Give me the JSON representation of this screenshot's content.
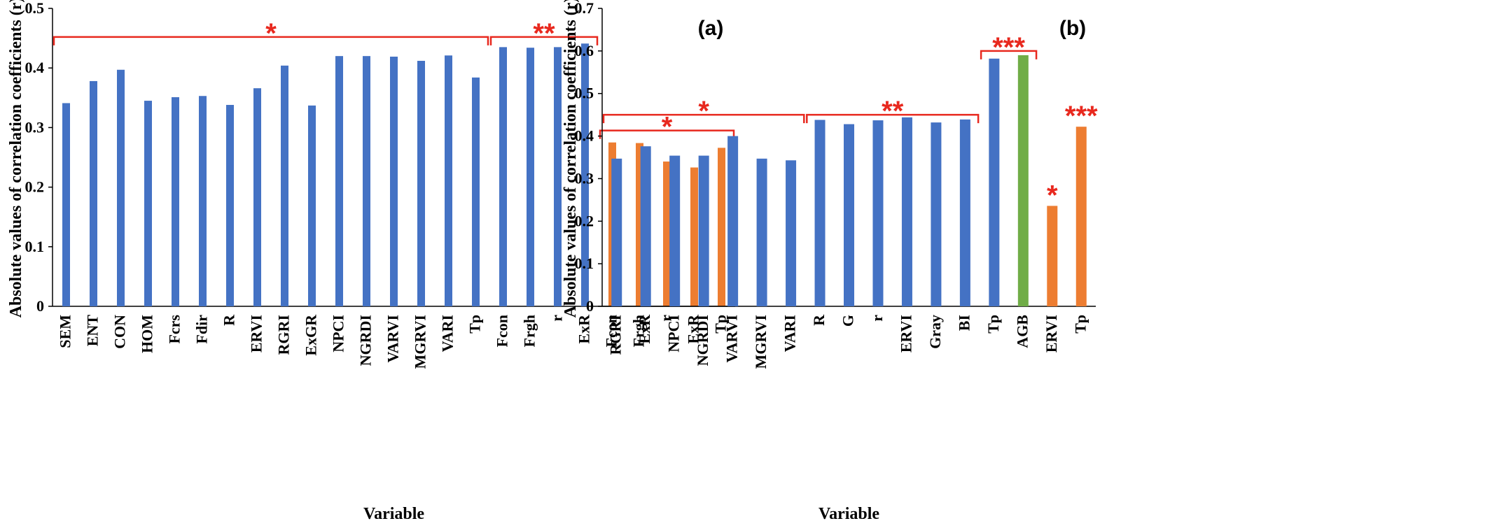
{
  "chart_data": [
    {
      "panel": "(a)",
      "type": "bar",
      "xlabel": "Variable",
      "ylabel": "Absolute values of correlation  coefficients (r)",
      "ylim": [
        0,
        0.5
      ],
      "yticks": [
        "0",
        "0.1",
        "0.2",
        "0.3",
        "0.4",
        "0.5"
      ],
      "categories": [
        "SEM",
        "ENT",
        "CON",
        "HOM",
        "Fcrs",
        "Fdir",
        "R",
        "ERVI",
        "RGRI",
        "ExGR",
        "NPCI",
        "NGRDI",
        "VARVI",
        "MGRVI",
        "VARI",
        "Tp",
        "Fcon",
        "Frgh",
        "r",
        "ExR",
        "Fcon",
        "Frgh",
        "r",
        "ExR",
        "Tp"
      ],
      "values": [
        0.341,
        0.378,
        0.397,
        0.345,
        0.351,
        0.353,
        0.338,
        0.366,
        0.404,
        0.337,
        0.42,
        0.42,
        0.419,
        0.412,
        0.421,
        0.384,
        0.435,
        0.434,
        0.435,
        0.441,
        0.275,
        0.274,
        0.243,
        0.233,
        0.266
      ],
      "bar_colors": [
        "#4472c4",
        "#4472c4",
        "#4472c4",
        "#4472c4",
        "#4472c4",
        "#4472c4",
        "#4472c4",
        "#4472c4",
        "#4472c4",
        "#4472c4",
        "#4472c4",
        "#4472c4",
        "#4472c4",
        "#4472c4",
        "#4472c4",
        "#4472c4",
        "#4472c4",
        "#4472c4",
        "#4472c4",
        "#4472c4",
        "#ed7d31",
        "#ed7d31",
        "#ed7d31",
        "#ed7d31",
        "#ed7d31"
      ],
      "significance": [
        {
          "from": 0,
          "to": 15,
          "level": 0.452,
          "stars": "*"
        },
        {
          "from": 16,
          "to": 19,
          "level": 0.452,
          "stars": "**"
        },
        {
          "from": 20,
          "to": 24,
          "level": 0.295,
          "stars": "*"
        }
      ]
    },
    {
      "panel": "(b)",
      "type": "bar",
      "xlabel": "Variable",
      "ylabel": "Absolute values of correlation  coefficients (r)",
      "ylim": [
        0,
        0.7
      ],
      "yticks": [
        "0",
        "0.1",
        "0.2",
        "0.3",
        "0.4",
        "0.5",
        "0.6",
        "0.7"
      ],
      "categories": [
        "RGRI",
        "ExR",
        "NPCI",
        "NGRDI",
        "VARVI",
        "MGRVI",
        "VARI",
        "R",
        "G",
        "r",
        "ERVI",
        "Gray",
        "BI",
        "Tp",
        "AGB",
        "ERVI",
        "Tp"
      ],
      "values": [
        0.347,
        0.376,
        0.354,
        0.354,
        0.4,
        0.347,
        0.343,
        0.438,
        0.428,
        0.437,
        0.444,
        0.432,
        0.439,
        0.582,
        0.59,
        0.236,
        0.422
      ],
      "bar_colors": [
        "#4472c4",
        "#4472c4",
        "#4472c4",
        "#4472c4",
        "#4472c4",
        "#4472c4",
        "#4472c4",
        "#4472c4",
        "#4472c4",
        "#4472c4",
        "#4472c4",
        "#4472c4",
        "#4472c4",
        "#4472c4",
        "#70ad47",
        "#ed7d31",
        "#ed7d31"
      ],
      "significance": [
        {
          "from": 0,
          "to": 6,
          "level": 0.45,
          "stars": "*"
        },
        {
          "from": 7,
          "to": 12,
          "level": 0.45,
          "stars": "**"
        },
        {
          "from": 13,
          "to": 14,
          "level": 0.6,
          "stars": "***"
        },
        {
          "from": 15,
          "to": 15,
          "level": null,
          "stars": "*"
        },
        {
          "from": 16,
          "to": 16,
          "level": null,
          "stars": "***"
        }
      ]
    }
  ]
}
